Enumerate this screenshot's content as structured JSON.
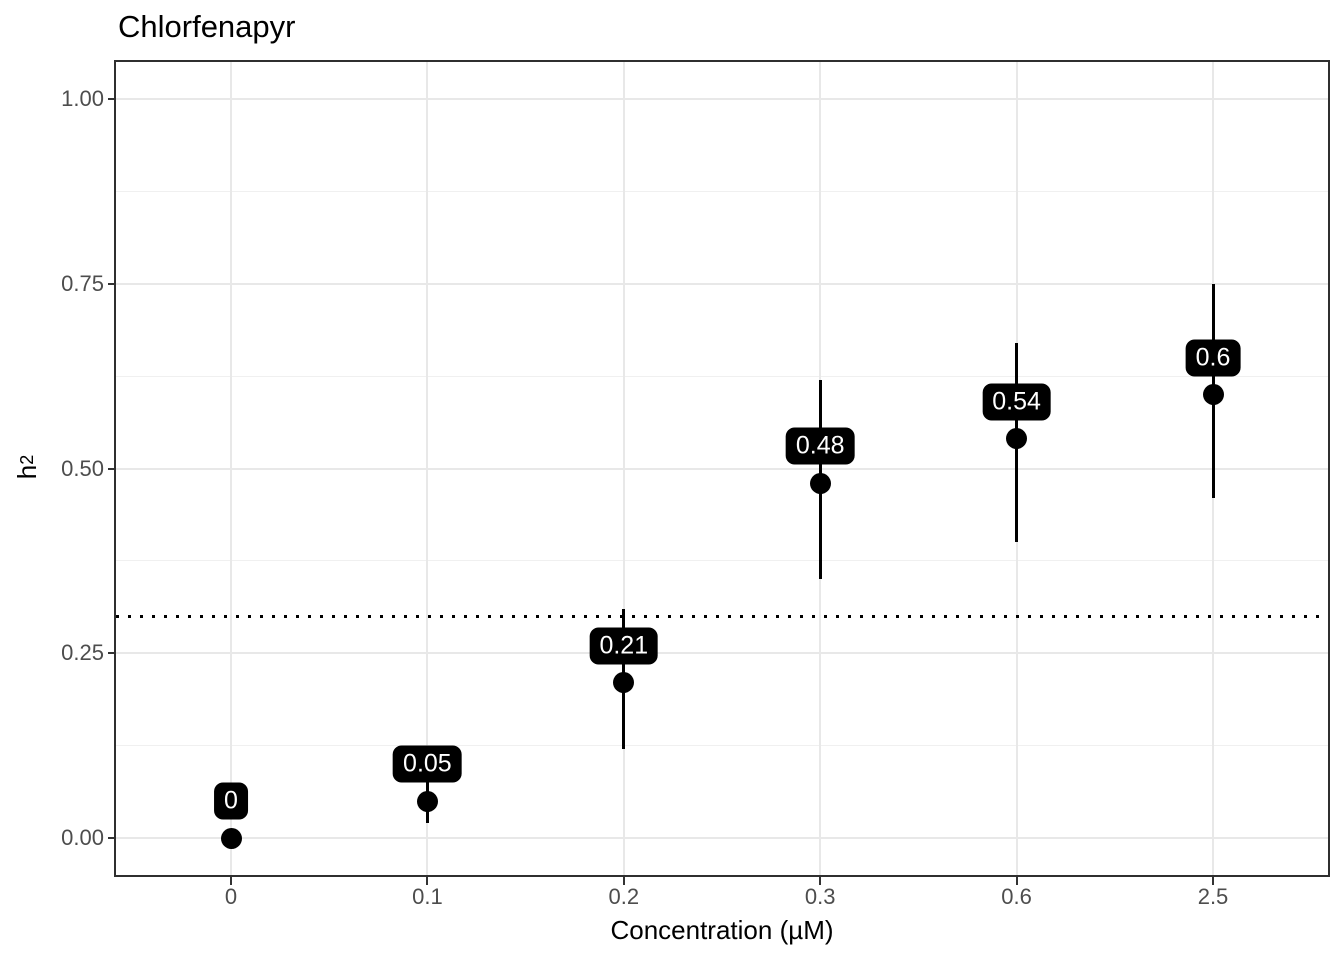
{
  "chart_data": {
    "type": "scatter",
    "title": "Chlorfenapyr",
    "xlabel": "Concentration (µM)",
    "ylabel": "h²",
    "ylabel_base": "h",
    "ylabel_sup": "2",
    "x_categories": [
      "0",
      "0.1",
      "0.2",
      "0.3",
      "0.6",
      "2.5"
    ],
    "y_axis": {
      "ticks": [
        {
          "value": 1.0,
          "label": "1.00"
        },
        {
          "value": 0.75,
          "label": "0.75"
        },
        {
          "value": 0.5,
          "label": "0.50"
        },
        {
          "value": 0.25,
          "label": "0.25"
        },
        {
          "value": 0.0,
          "label": "0.00"
        }
      ],
      "minor_ticks": [
        0.875,
        0.625,
        0.375,
        0.125
      ],
      "range": [
        -0.05,
        1.05
      ]
    },
    "reference_line": {
      "y": 0.3,
      "style": "dotted"
    },
    "grid": true,
    "legend": false,
    "points": [
      {
        "x": "0",
        "h2": 0.0,
        "ci_low": 0.0,
        "ci_high": 0.0,
        "label": "0"
      },
      {
        "x": "0.1",
        "h2": 0.05,
        "ci_low": 0.02,
        "ci_high": 0.09,
        "label": "0.05"
      },
      {
        "x": "0.2",
        "h2": 0.21,
        "ci_low": 0.12,
        "ci_high": 0.31,
        "label": "0.21"
      },
      {
        "x": "0.3",
        "h2": 0.48,
        "ci_low": 0.35,
        "ci_high": 0.62,
        "label": "0.48"
      },
      {
        "x": "0.6",
        "h2": 0.54,
        "ci_low": 0.4,
        "ci_high": 0.67,
        "label": "0.54"
      },
      {
        "x": "2.5",
        "h2": 0.6,
        "ci_low": 0.46,
        "ci_high": 0.75,
        "label": "0.6"
      }
    ],
    "colors": {
      "point": "#000000",
      "error_bar": "#000000",
      "label_bg": "#000000",
      "label_text": "#ffffff",
      "grid_major": "#e8e8e8",
      "grid_minor": "#f0f0f0",
      "panel_border": "#2f2f2f",
      "panel_bg": "#ffffff",
      "tick_mark": "#333333",
      "tick_label": "#4d4d4d",
      "title_color": "#000000",
      "reference_line": "#000000"
    }
  }
}
